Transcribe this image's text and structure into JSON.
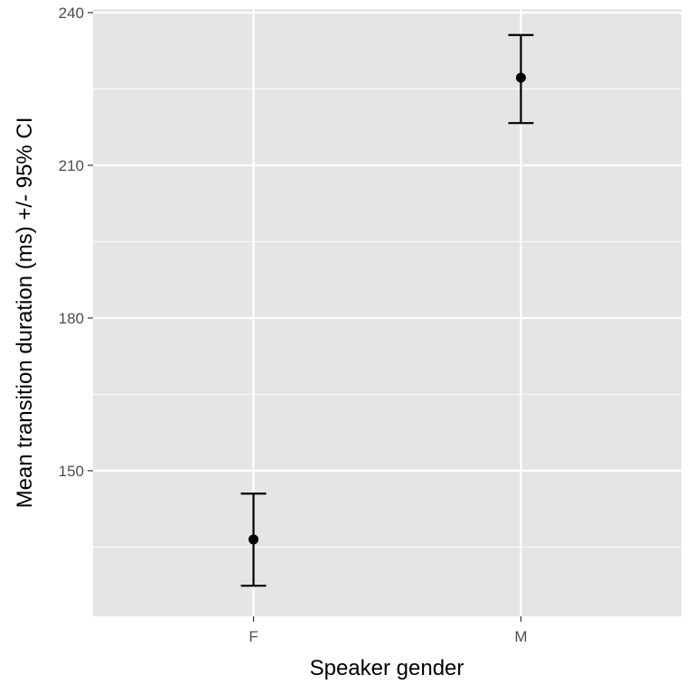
{
  "chart_data": {
    "type": "errorbar",
    "title": "",
    "xlabel": "Speaker gender",
    "ylabel": "Mean transition duration (ms) +/- 95% CI",
    "categories": [
      "F",
      "M"
    ],
    "means": [
      136.5,
      227.2
    ],
    "ci_lower": [
      127.4,
      218.3
    ],
    "ci_upper": [
      145.5,
      235.6
    ],
    "ylim": [
      121.4,
      240.7
    ],
    "yticks": [
      150,
      180,
      210,
      240
    ],
    "y_minor_ticks": [
      135,
      165,
      195,
      225
    ],
    "grid": true,
    "legend": "none",
    "colors": {
      "panel_background": "#e5e5e5",
      "grid": "#ffffff",
      "points": "#000000"
    }
  }
}
